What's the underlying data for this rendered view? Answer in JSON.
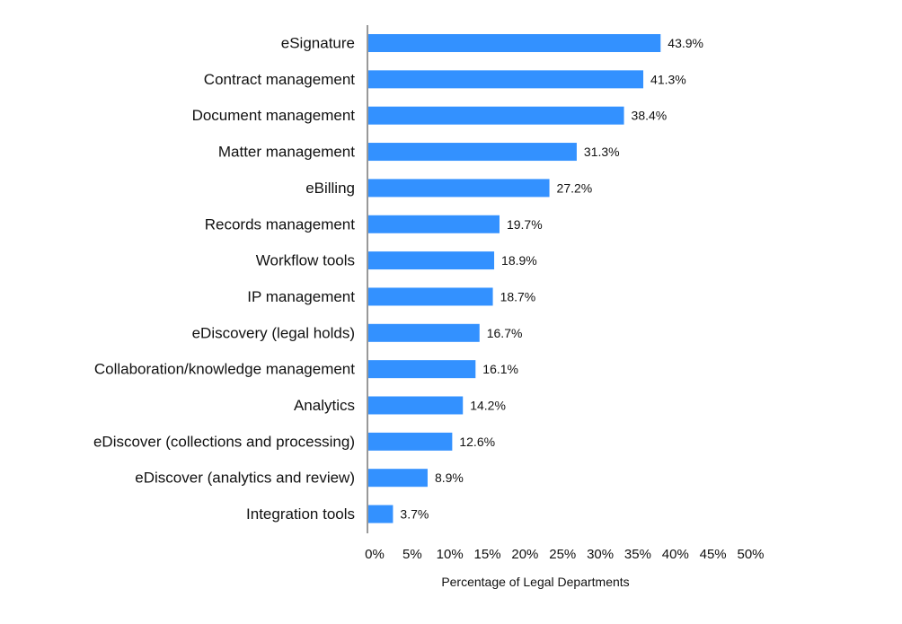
{
  "chart_data": {
    "type": "bar",
    "orientation": "horizontal",
    "title": "",
    "xlabel": "Percentage of Legal Departments",
    "ylabel": "",
    "xlim": [
      0,
      50
    ],
    "x_ticks": [
      0,
      5,
      10,
      15,
      20,
      25,
      30,
      35,
      40,
      45,
      50
    ],
    "x_tick_labels": [
      "0%",
      "5%",
      "10%",
      "15%",
      "20%",
      "25%",
      "30%",
      "35%",
      "40%",
      "45%",
      "50%"
    ],
    "grid": false,
    "legend": "none",
    "bar_color": "#3391ff",
    "categories": [
      "eSignature",
      "Contract management",
      "Document management",
      "Matter management",
      "eBilling",
      "Records management",
      "Workflow tools",
      "IP management",
      "eDiscovery (legal holds)",
      "Collaboration/knowledge management",
      "Analytics",
      "eDiscover (collections and processing)",
      "eDiscover (analytics and review)",
      "Integration tools"
    ],
    "values": [
      43.9,
      41.3,
      38.4,
      31.3,
      27.2,
      19.7,
      18.9,
      18.7,
      16.7,
      16.1,
      14.2,
      12.6,
      8.9,
      3.7
    ],
    "value_labels": [
      "43.9%",
      "41.3%",
      "38.4%",
      "31.3%",
      "27.2%",
      "19.7%",
      "18.9%",
      "18.7%",
      "16.7%",
      "16.1%",
      "14.2%",
      "12.6%",
      "8.9%",
      "3.7%"
    ]
  }
}
